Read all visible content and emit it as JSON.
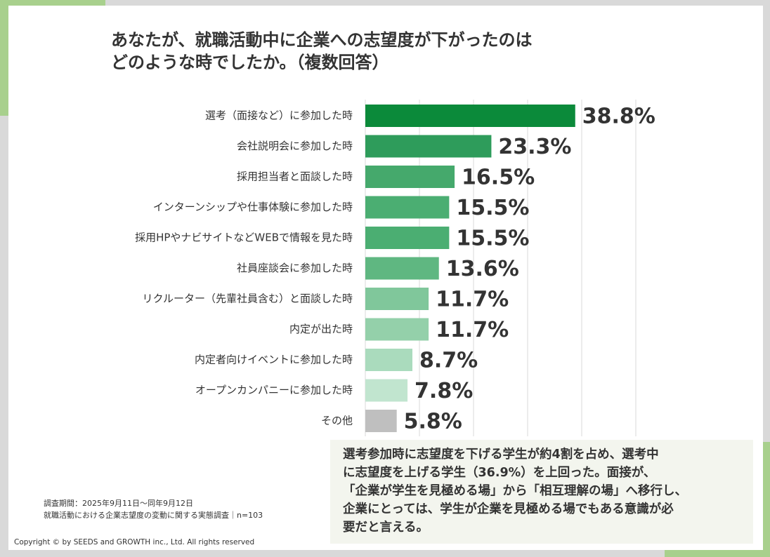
{
  "chart_data": {
    "type": "bar",
    "title": [
      "あなたが、就職活動中に企業への志望度が下がったのは",
      "どのような時でしたか。（複数回答）"
    ],
    "categories": [
      "選考（面接など）に参加した時",
      "会社説明会に参加した時",
      "採用担当者と面談した時",
      "インターンシップや仕事体験に参加した時",
      "採用HPやナビサイトなどWEBで情報を見た時",
      "社員座談会に参加した時",
      "リクルーター（先輩社員含む）と面談した時",
      "内定が出た時",
      "内定者向けイベントに参加した時",
      "オープンカンパニーに参加した時",
      "その他"
    ],
    "values": [
      38.8,
      23.3,
      16.5,
      15.5,
      15.5,
      13.6,
      11.7,
      11.7,
      8.7,
      7.8,
      5.8
    ],
    "value_labels": [
      "38.8%",
      "23.3%",
      "16.5%",
      "15.5%",
      "15.5%",
      "13.6%",
      "11.7%",
      "11.7%",
      "8.7%",
      "7.8%",
      "5.8%"
    ],
    "colors": [
      "#0b8a3a",
      "#2e9c5b",
      "#45a96c",
      "#4bae72",
      "#4bae72",
      "#5fb781",
      "#80c79b",
      "#94d0aa",
      "#aadbbd",
      "#c1e5cf",
      "#bfbfbf"
    ],
    "xlim": [
      0,
      50
    ],
    "xticks": [
      0,
      10,
      20,
      30,
      40,
      50
    ],
    "grid": true,
    "annotation": [
      "選考参加時に志望度を下げる学生が約4割を占め、選考中",
      "に志望度を上げる学生（36.9%）を上回った。面接が、",
      "「企業が学生を見極める場」から「相互理解の場」へ移行し、",
      "企業にとっては、学生が企業を見極める場でもある意識が必",
      "要だと言える。"
    ],
    "source": [
      "調査期間：2025年9月11日～同年9月12日",
      "就職活動における企業志望度の変動に関する実態調査｜n=103"
    ],
    "copyright": "Copyright © by SEEDS and GROWTH inc., Ltd. All rights reserved"
  }
}
